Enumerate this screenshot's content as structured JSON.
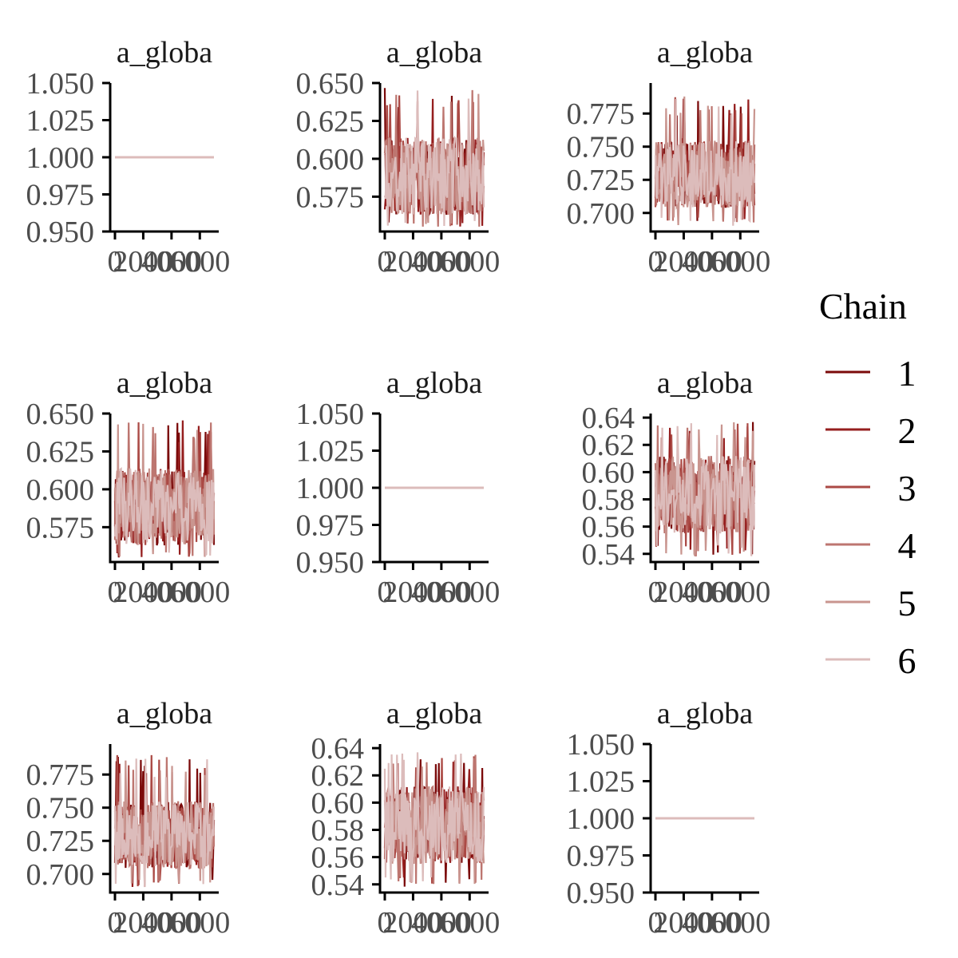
{
  "chart_data": {
    "type": "line",
    "grid": false,
    "legend": {
      "title": "Chain",
      "placement": "right",
      "entries": [
        "1",
        "2",
        "3",
        "4",
        "5",
        "6"
      ]
    },
    "series_colors": [
      "#7b0a0a",
      "#951e1e",
      "#ab4a45",
      "#bd7670",
      "#c9958f",
      "#dcbcbb"
    ],
    "iterations": 7000,
    "panels": [
      {
        "title": "a_globa",
        "kind": "constant",
        "center": 1.0,
        "ylim": [
          0.95,
          1.05
        ],
        "yticks": [
          "0.950",
          "0.975",
          "1.000",
          "1.025",
          "1.050"
        ],
        "xticks": [
          "0",
          "2000",
          "4000",
          "6000"
        ]
      },
      {
        "title": "a_globa",
        "kind": "noise",
        "center": 0.587,
        "typical_low": 0.563,
        "typical_high": 0.614,
        "min": 0.555,
        "max": 0.647,
        "ylim": [
          0.552,
          0.65
        ],
        "yticks": [
          "0.575",
          "0.600",
          "0.625",
          "0.650"
        ],
        "xticks": [
          "0",
          "2000",
          "4000",
          "6000"
        ]
      },
      {
        "title": "a_globa",
        "kind": "noise",
        "center": 0.728,
        "typical_low": 0.704,
        "typical_high": 0.755,
        "min": 0.69,
        "max": 0.791,
        "ylim": [
          0.686,
          0.798
        ],
        "yticks": [
          "0.700",
          "0.725",
          "0.750",
          "0.775"
        ],
        "xticks": [
          "0",
          "2000",
          "4000",
          "6000"
        ]
      },
      {
        "title": "a_globa",
        "kind": "noise",
        "center": 0.587,
        "typical_low": 0.563,
        "typical_high": 0.614,
        "min": 0.555,
        "max": 0.647,
        "ylim": [
          0.552,
          0.65
        ],
        "yticks": [
          "0.575",
          "0.600",
          "0.625",
          "0.650"
        ],
        "xticks": [
          "0",
          "2000",
          "4000",
          "6000"
        ]
      },
      {
        "title": "a_globa",
        "kind": "constant",
        "center": 1.0,
        "ylim": [
          0.95,
          1.05
        ],
        "yticks": [
          "0.950",
          "0.975",
          "1.000",
          "1.025",
          "1.050"
        ],
        "xticks": [
          "0",
          "2000",
          "4000",
          "6000"
        ]
      },
      {
        "title": "a_globa",
        "kind": "noise",
        "center": 0.579,
        "typical_low": 0.555,
        "typical_high": 0.612,
        "min": 0.538,
        "max": 0.637,
        "ylim": [
          0.534,
          0.643
        ],
        "yticks": [
          "0.54",
          "0.56",
          "0.58",
          "0.60",
          "0.62",
          "0.64"
        ],
        "xticks": [
          "0",
          "2000",
          "4000",
          "6000"
        ]
      },
      {
        "title": "a_globa",
        "kind": "noise",
        "center": 0.728,
        "typical_low": 0.704,
        "typical_high": 0.755,
        "min": 0.69,
        "max": 0.791,
        "ylim": [
          0.686,
          0.798
        ],
        "yticks": [
          "0.700",
          "0.725",
          "0.750",
          "0.775"
        ],
        "xticks": [
          "0",
          "2000",
          "4000",
          "6000"
        ]
      },
      {
        "title": "a_globa",
        "kind": "noise",
        "center": 0.579,
        "typical_low": 0.555,
        "typical_high": 0.612,
        "min": 0.538,
        "max": 0.637,
        "ylim": [
          0.534,
          0.643
        ],
        "yticks": [
          "0.54",
          "0.56",
          "0.58",
          "0.60",
          "0.62",
          "0.64"
        ],
        "xticks": [
          "0",
          "2000",
          "4000",
          "6000"
        ]
      },
      {
        "title": "a_globa",
        "kind": "constant",
        "center": 1.0,
        "ylim": [
          0.95,
          1.05
        ],
        "yticks": [
          "0.950",
          "0.975",
          "1.000",
          "1.025",
          "1.050"
        ],
        "xticks": [
          "0",
          "2000",
          "4000",
          "6000"
        ]
      }
    ]
  }
}
